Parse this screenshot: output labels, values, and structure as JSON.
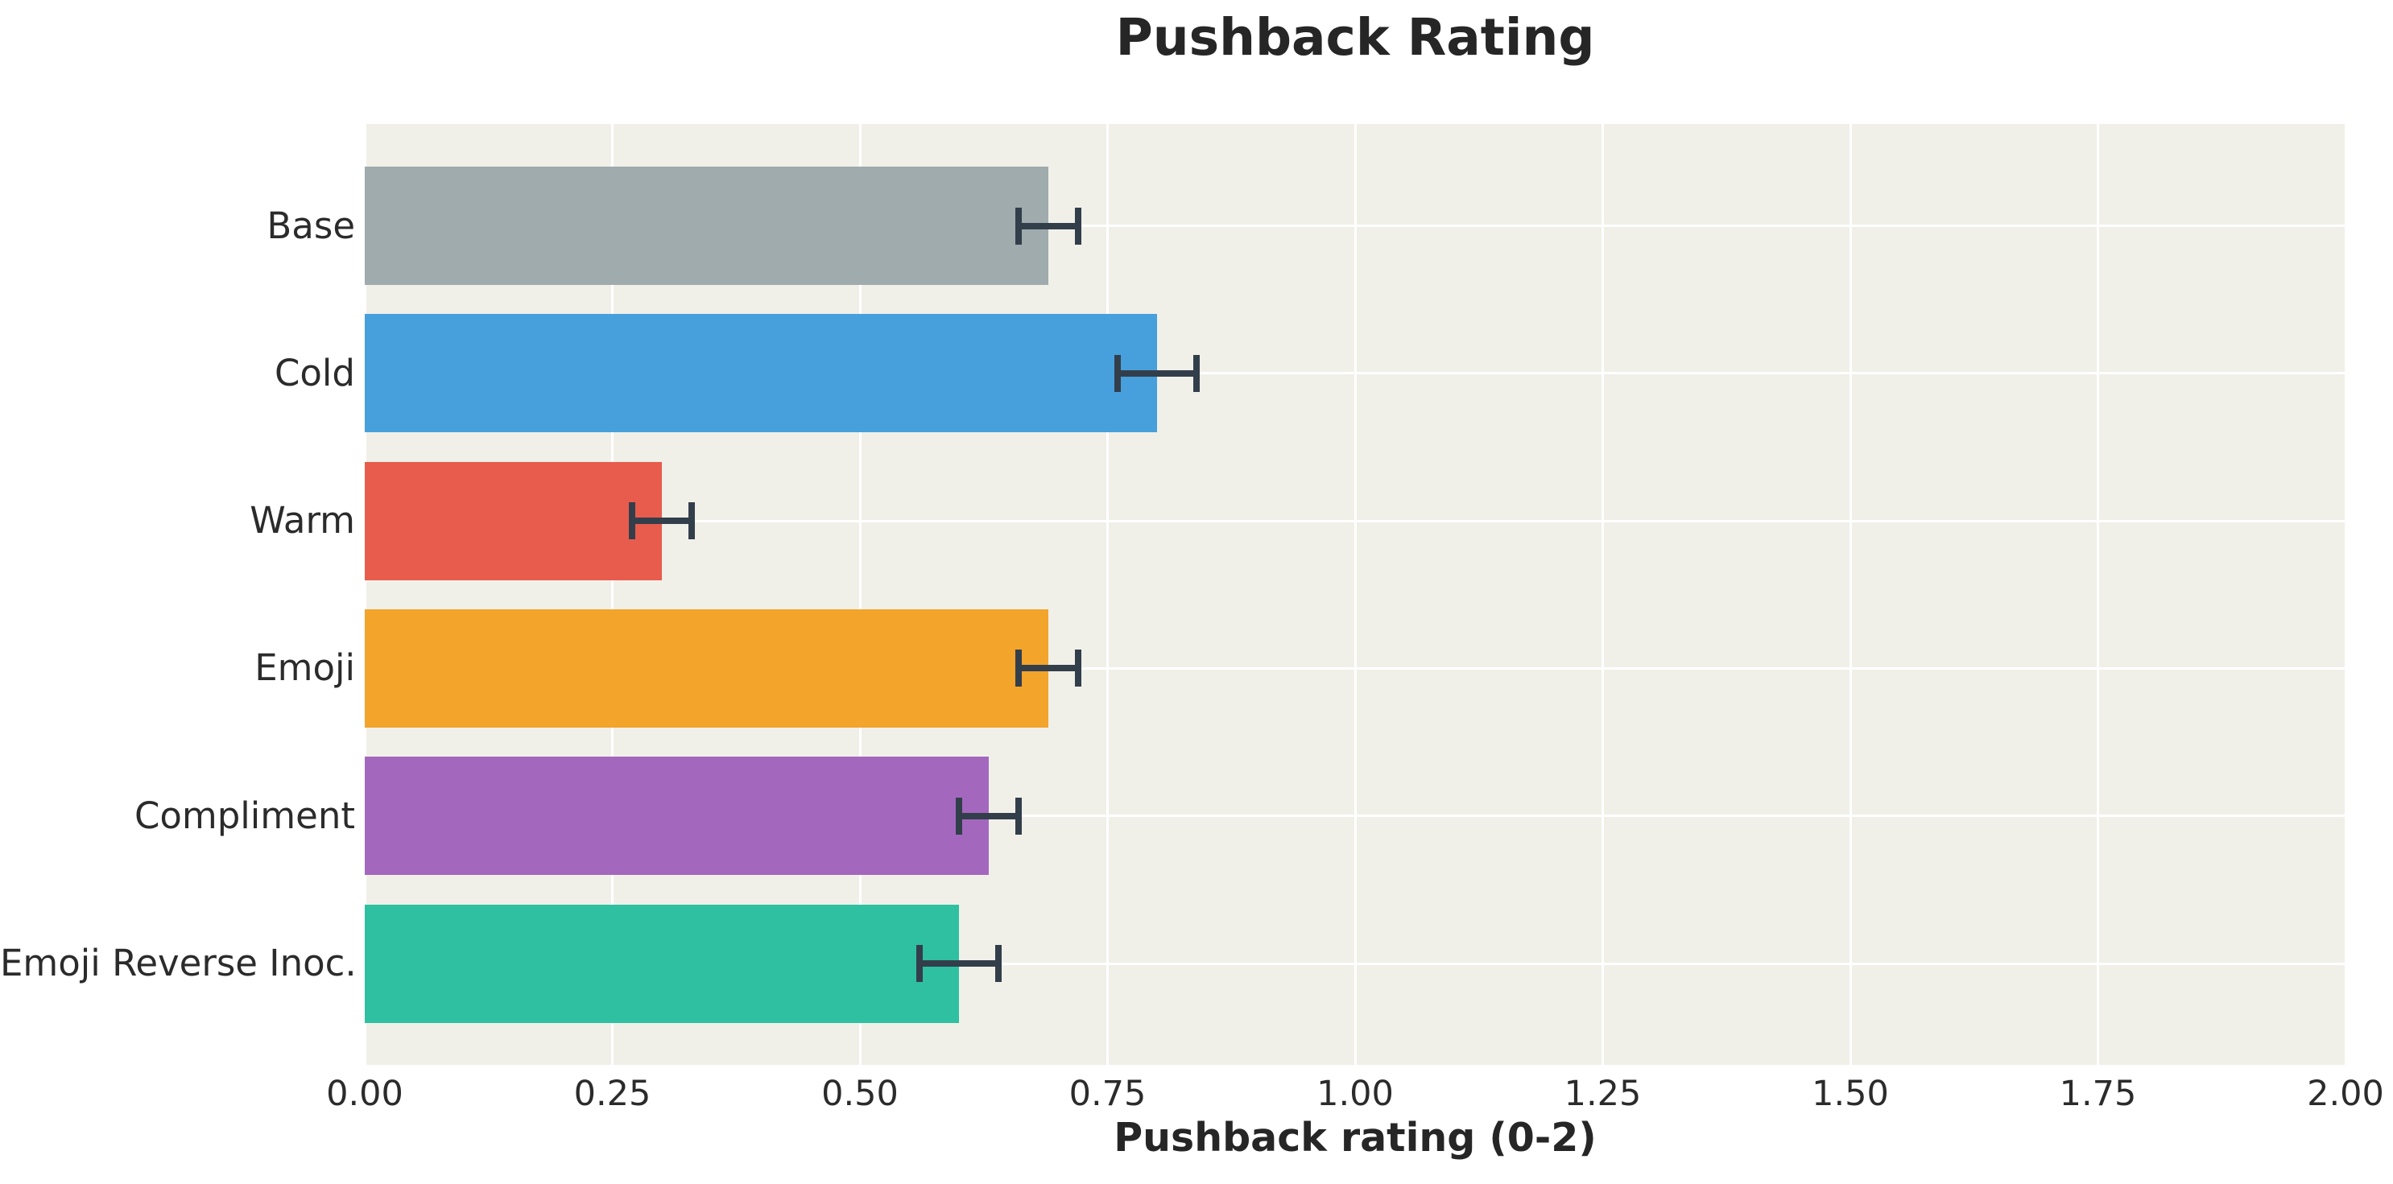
{
  "chart_data": {
    "type": "bar",
    "orientation": "horizontal",
    "title": "Pushback Rating",
    "xlabel": "Pushback rating (0-2)",
    "ylabel": "",
    "xlim": [
      0,
      2
    ],
    "xticks": [
      "0.00",
      "0.25",
      "0.50",
      "0.75",
      "1.00",
      "1.25",
      "1.50",
      "1.75",
      "2.00"
    ],
    "grid": true,
    "legend": "none",
    "categories": [
      "Base",
      "Cold",
      "Warm",
      "Emoji",
      "Compliment",
      "Emoji Reverse Inoc."
    ],
    "values": [
      0.69,
      0.8,
      0.3,
      0.69,
      0.63,
      0.6
    ],
    "error_bars": [
      0.03,
      0.04,
      0.03,
      0.03,
      0.03,
      0.04
    ],
    "bar_colors": [
      "#9fabac",
      "#47a0dc",
      "#e85c4d",
      "#f3a42b",
      "#a368bd",
      "#2fc0a2"
    ],
    "error_bar_color": "#333e4b",
    "plot_background_color": "#f0f0e9",
    "grid_color": "#ffffff",
    "text_color": "#2b2b2b"
  }
}
